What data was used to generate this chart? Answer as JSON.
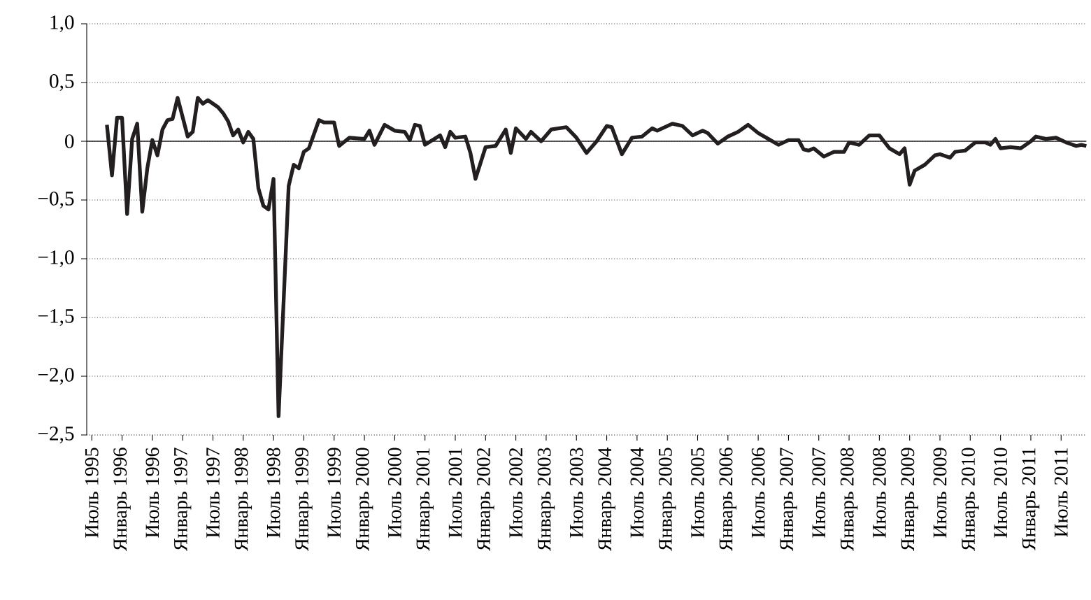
{
  "chart_data": {
    "type": "line",
    "color": "#231f20",
    "marker": "none",
    "line_style": "solid",
    "grid": "y",
    "x": [
      "1995-10",
      "1995-11",
      "1995-12",
      "1996-01",
      "1996-02",
      "1996-03",
      "1996-04",
      "1996-05",
      "1996-06",
      "1996-07",
      "1996-08",
      "1996-09",
      "1996-10",
      "1996-11",
      "1996-12",
      "1997-02",
      "1997-03",
      "1997-04",
      "1997-05",
      "1997-06",
      "1997-08",
      "1997-09",
      "1997-10",
      "1997-11",
      "1997-12",
      "1998-01",
      "1998-02",
      "1998-03",
      "1998-04",
      "1998-05",
      "1998-06",
      "1998-07",
      "1998-08",
      "1998-10",
      "1998-11",
      "1998-12",
      "1999-01",
      "1999-02",
      "1999-04",
      "1999-05",
      "1999-07",
      "1999-08",
      "1999-10",
      "2000-01",
      "2000-02",
      "2000-03",
      "2000-05",
      "2000-07",
      "2000-09",
      "2000-10",
      "2000-11",
      "2000-12",
      "2001-01",
      "2001-04",
      "2001-05",
      "2001-06",
      "2001-07",
      "2001-09",
      "2001-10",
      "2001-11",
      "2002-01",
      "2002-03",
      "2002-05",
      "2002-06",
      "2002-07",
      "2002-09",
      "2002-10",
      "2002-12",
      "2003-02",
      "2003-05",
      "2003-07",
      "2003-09",
      "2003-11",
      "2004-01",
      "2004-02",
      "2004-04",
      "2004-06",
      "2004-08",
      "2004-10",
      "2004-11",
      "2005-02",
      "2005-04",
      "2005-06",
      "2005-08",
      "2005-09",
      "2005-11",
      "2006-01",
      "2006-03",
      "2006-05",
      "2006-07",
      "2006-09",
      "2006-11",
      "2007-01",
      "2007-03",
      "2007-04",
      "2007-05",
      "2007-06",
      "2007-08",
      "2007-10",
      "2007-12",
      "2008-01",
      "2008-03",
      "2008-05",
      "2008-07",
      "2008-09",
      "2008-11",
      "2008-12",
      "2009-01",
      "2009-02",
      "2009-04",
      "2009-06",
      "2009-07",
      "2009-09",
      "2009-10",
      "2009-12",
      "2010-02",
      "2010-04",
      "2010-05",
      "2010-06",
      "2010-07",
      "2010-09",
      "2010-11",
      "2011-01",
      "2011-02",
      "2011-04",
      "2011-06",
      "2011-08",
      "2011-10",
      "2011-11",
      "2011-12"
    ],
    "values": [
      0.14,
      -0.29,
      0.2,
      0.2,
      -0.62,
      0.02,
      0.15,
      -0.6,
      -0.23,
      0.01,
      -0.12,
      0.1,
      0.18,
      0.19,
      0.37,
      0.04,
      0.08,
      0.37,
      0.32,
      0.35,
      0.29,
      0.24,
      0.17,
      0.05,
      0.1,
      -0.01,
      0.08,
      0.02,
      -0.4,
      -0.55,
      -0.58,
      -0.32,
      -2.34,
      -0.38,
      -0.2,
      -0.23,
      -0.09,
      -0.06,
      0.18,
      0.16,
      0.16,
      -0.04,
      0.03,
      0.02,
      0.09,
      -0.03,
      0.14,
      0.09,
      0.08,
      0.01,
      0.14,
      0.13,
      -0.03,
      0.05,
      -0.05,
      0.08,
      0.03,
      0.04,
      -0.1,
      -0.32,
      -0.05,
      -0.04,
      0.1,
      -0.1,
      0.11,
      0.02,
      0.08,
      0.0,
      0.1,
      0.12,
      0.03,
      -0.1,
      0.0,
      0.13,
      0.12,
      -0.11,
      0.03,
      0.04,
      0.11,
      0.09,
      0.15,
      0.13,
      0.05,
      0.09,
      0.07,
      -0.02,
      0.04,
      0.08,
      0.14,
      0.07,
      0.02,
      -0.03,
      0.01,
      0.01,
      -0.07,
      -0.08,
      -0.06,
      -0.13,
      -0.09,
      -0.09,
      -0.01,
      -0.03,
      0.05,
      0.05,
      -0.06,
      -0.11,
      -0.06,
      -0.37,
      -0.25,
      -0.2,
      -0.12,
      -0.11,
      -0.14,
      -0.09,
      -0.08,
      -0.01,
      -0.01,
      -0.03,
      0.02,
      -0.06,
      -0.05,
      -0.06,
      0.0,
      0.04,
      0.02,
      0.03,
      -0.01,
      -0.04,
      -0.03,
      -0.04
    ],
    "xlim": [
      "1995-06",
      "2011-12"
    ],
    "xticks": [
      {
        "value": "1995-07",
        "label": "Июль 1995"
      },
      {
        "value": "1996-01",
        "label": "Январь 1996"
      },
      {
        "value": "1996-07",
        "label": "Июль 1996"
      },
      {
        "value": "1997-01",
        "label": "Январь 1997"
      },
      {
        "value": "1997-07",
        "label": "Июль 1997"
      },
      {
        "value": "1998-01",
        "label": "Январь 1998"
      },
      {
        "value": "1998-07",
        "label": "Июль 1998"
      },
      {
        "value": "1999-01",
        "label": "Январь 1999"
      },
      {
        "value": "1999-07",
        "label": "Июль 1999"
      },
      {
        "value": "2000-01",
        "label": "Январь 2000"
      },
      {
        "value": "2000-07",
        "label": "Июль 2000"
      },
      {
        "value": "2001-01",
        "label": "Январь 2001"
      },
      {
        "value": "2001-07",
        "label": "Июль 2001"
      },
      {
        "value": "2002-01",
        "label": "Январь 2002"
      },
      {
        "value": "2002-07",
        "label": "Июль 2002"
      },
      {
        "value": "2003-01",
        "label": "Январь 2003"
      },
      {
        "value": "2003-07",
        "label": "Июль 2003"
      },
      {
        "value": "2004-01",
        "label": "Январь 2004"
      },
      {
        "value": "2004-07",
        "label": "Июль 2004"
      },
      {
        "value": "2005-01",
        "label": "Январь 2005"
      },
      {
        "value": "2005-07",
        "label": "Июль 2005"
      },
      {
        "value": "2006-01",
        "label": "Январь 2006"
      },
      {
        "value": "2006-07",
        "label": "Июль 2006"
      },
      {
        "value": "2007-01",
        "label": "Январь 2007"
      },
      {
        "value": "2007-07",
        "label": "Июль 2007"
      },
      {
        "value": "2008-01",
        "label": "Январь 2008"
      },
      {
        "value": "2008-07",
        "label": "Июль 2008"
      },
      {
        "value": "2009-01",
        "label": "Январь 2009"
      },
      {
        "value": "2009-07",
        "label": "Июль 2009"
      },
      {
        "value": "2010-01",
        "label": "Январь 2010"
      },
      {
        "value": "2010-07",
        "label": "Июль 2010"
      },
      {
        "value": "2011-01",
        "label": "Январь 2011"
      },
      {
        "value": "2011-07",
        "label": "Июль 2011"
      }
    ],
    "ylim": [
      -2.5,
      1.0
    ],
    "yticks": [
      {
        "value": 1.0,
        "label": "1,0"
      },
      {
        "value": 0.5,
        "label": "0,5"
      },
      0,
      {
        "value": -0.5,
        "label": "−0,5"
      },
      {
        "value": -1.0,
        "label": "−1,0"
      },
      {
        "value": -1.5,
        "label": "−1,5"
      },
      {
        "value": -2.0,
        "label": "−2,0"
      },
      {
        "value": -2.5,
        "label": "−2,5"
      }
    ],
    "ref_lines": [
      {
        "axis": "y",
        "value": 0,
        "color": "#231f20",
        "line_style": "solid"
      }
    ]
  }
}
